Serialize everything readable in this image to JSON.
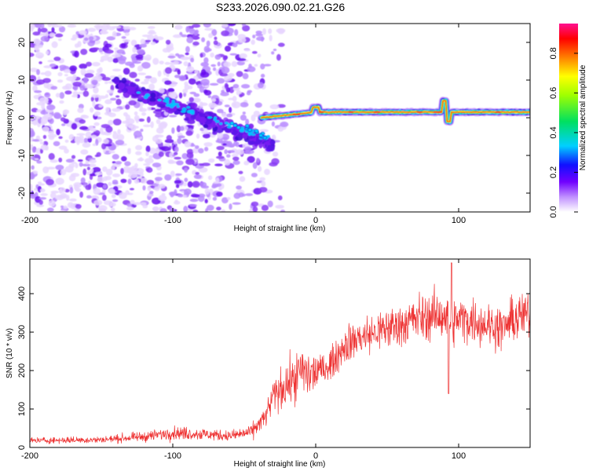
{
  "title": "S233.2026.090.02.21.G26",
  "chart_data": [
    {
      "type": "heatmap",
      "name": "spectrogram",
      "xlabel": "Height of straight line (km)",
      "ylabel": "Frequency (Hz)",
      "xlim": [
        -200,
        150
      ],
      "ylim": [
        -25,
        25
      ],
      "xticks": [
        -200,
        -100,
        0,
        100
      ],
      "yticks": [
        -20,
        -10,
        0,
        10,
        20
      ],
      "colorbar": {
        "label": "Normalized spectral amplitude",
        "range": [
          0.0,
          0.95
        ],
        "ticks": [
          0.0,
          0.2,
          0.4,
          0.6,
          0.8
        ]
      },
      "features": {
        "noise_region_x": [
          -200,
          -40
        ],
        "signal_line_x": [
          -60,
          150
        ],
        "signal_start_freq_hz": -5,
        "signal_freq_hz": 1.5,
        "blips": [
          {
            "x": 0,
            "freq": 3
          },
          {
            "x": 90,
            "freq": 5
          },
          {
            "x": 93,
            "freq": -1
          }
        ]
      }
    },
    {
      "type": "line",
      "name": "snr",
      "xlabel": "Height of straight line (km)",
      "ylabel": "SNR (10 * v/v)",
      "xlim": [
        -200,
        150
      ],
      "ylim": [
        0,
        490
      ],
      "xticks": [
        -200,
        -100,
        0,
        100
      ],
      "yticks": [
        0,
        100,
        200,
        300,
        400
      ],
      "color": "#ee3333",
      "series": [
        {
          "name": "SNR",
          "x": [
            -200,
            -150,
            -120,
            -100,
            -80,
            -60,
            -45,
            -35,
            -30,
            -25,
            -20,
            -15,
            -10,
            -5,
            0,
            5,
            10,
            15,
            20,
            30,
            40,
            50,
            60,
            70,
            80,
            90,
            95,
            100,
            110,
            120,
            130,
            140,
            150
          ],
          "values": [
            18,
            20,
            28,
            38,
            35,
            30,
            40,
            80,
            130,
            150,
            165,
            175,
            200,
            190,
            195,
            205,
            215,
            240,
            265,
            285,
            295,
            310,
            320,
            335,
            340,
            345,
            320,
            335,
            330,
            320,
            310,
            335,
            350
          ]
        }
      ]
    }
  ]
}
